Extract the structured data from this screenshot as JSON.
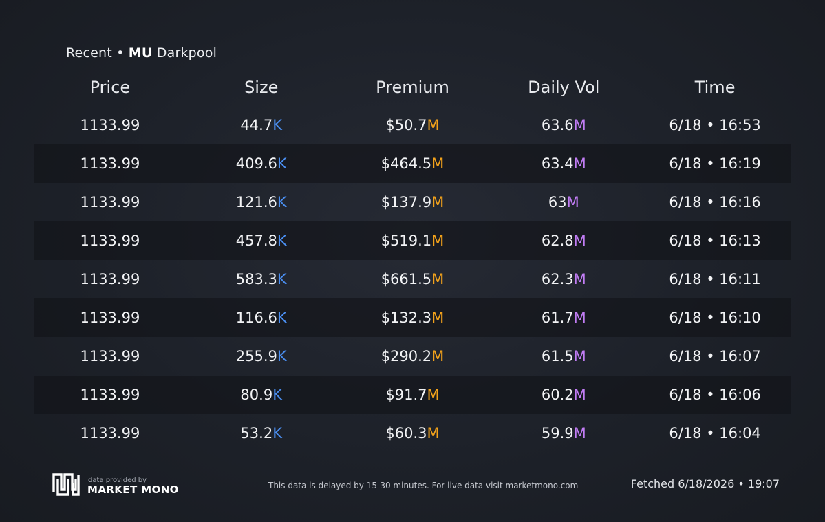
{
  "title": {
    "prefix": "Recent •",
    "ticker": "MU",
    "suffix": "Darkpool"
  },
  "columns": [
    "Price",
    "Size",
    "Premium",
    "Daily Vol",
    "Time"
  ],
  "rows": [
    {
      "price": "1133.99",
      "size": "44.7",
      "size_unit": "K",
      "premium": "$50.7",
      "premium_unit": "M",
      "vol": "63.6",
      "vol_unit": "M",
      "time": "6/18 • 16:53"
    },
    {
      "price": "1133.99",
      "size": "409.6",
      "size_unit": "K",
      "premium": "$464.5",
      "premium_unit": "M",
      "vol": "63.4",
      "vol_unit": "M",
      "time": "6/18 • 16:19"
    },
    {
      "price": "1133.99",
      "size": "121.6",
      "size_unit": "K",
      "premium": "$137.9",
      "premium_unit": "M",
      "vol": "63",
      "vol_unit": "M",
      "time": "6/18 • 16:16"
    },
    {
      "price": "1133.99",
      "size": "457.8",
      "size_unit": "K",
      "premium": "$519.1",
      "premium_unit": "M",
      "vol": "62.8",
      "vol_unit": "M",
      "time": "6/18 • 16:13"
    },
    {
      "price": "1133.99",
      "size": "583.3",
      "size_unit": "K",
      "premium": "$661.5",
      "premium_unit": "M",
      "vol": "62.3",
      "vol_unit": "M",
      "time": "6/18 • 16:11"
    },
    {
      "price": "1133.99",
      "size": "116.6",
      "size_unit": "K",
      "premium": "$132.3",
      "premium_unit": "M",
      "vol": "61.7",
      "vol_unit": "M",
      "time": "6/18 • 16:10"
    },
    {
      "price": "1133.99",
      "size": "255.9",
      "size_unit": "K",
      "premium": "$290.2",
      "premium_unit": "M",
      "vol": "61.5",
      "vol_unit": "M",
      "time": "6/18 • 16:07"
    },
    {
      "price": "1133.99",
      "size": "80.9",
      "size_unit": "K",
      "premium": "$91.7",
      "premium_unit": "M",
      "vol": "60.2",
      "vol_unit": "M",
      "time": "6/18 • 16:06"
    },
    {
      "price": "1133.99",
      "size": "53.2",
      "size_unit": "K",
      "premium": "$60.3",
      "premium_unit": "M",
      "vol": "59.9",
      "vol_unit": "M",
      "time": "6/18 • 16:04"
    }
  ],
  "footer": {
    "provided_by": "data provided by",
    "brand": "MARKET MONO",
    "logo_icon": "market-mono-logo-icon",
    "delay_notice": "This data is delayed by 15-30 minutes. For live data visit marketmono.com",
    "fetched": "Fetched 6/18/2026 • 19:07"
  },
  "colors": {
    "background": "#1d2129",
    "size_unit": "#4a8ef0",
    "premium_unit": "#f2a21b",
    "vol_unit": "#c27df5"
  }
}
